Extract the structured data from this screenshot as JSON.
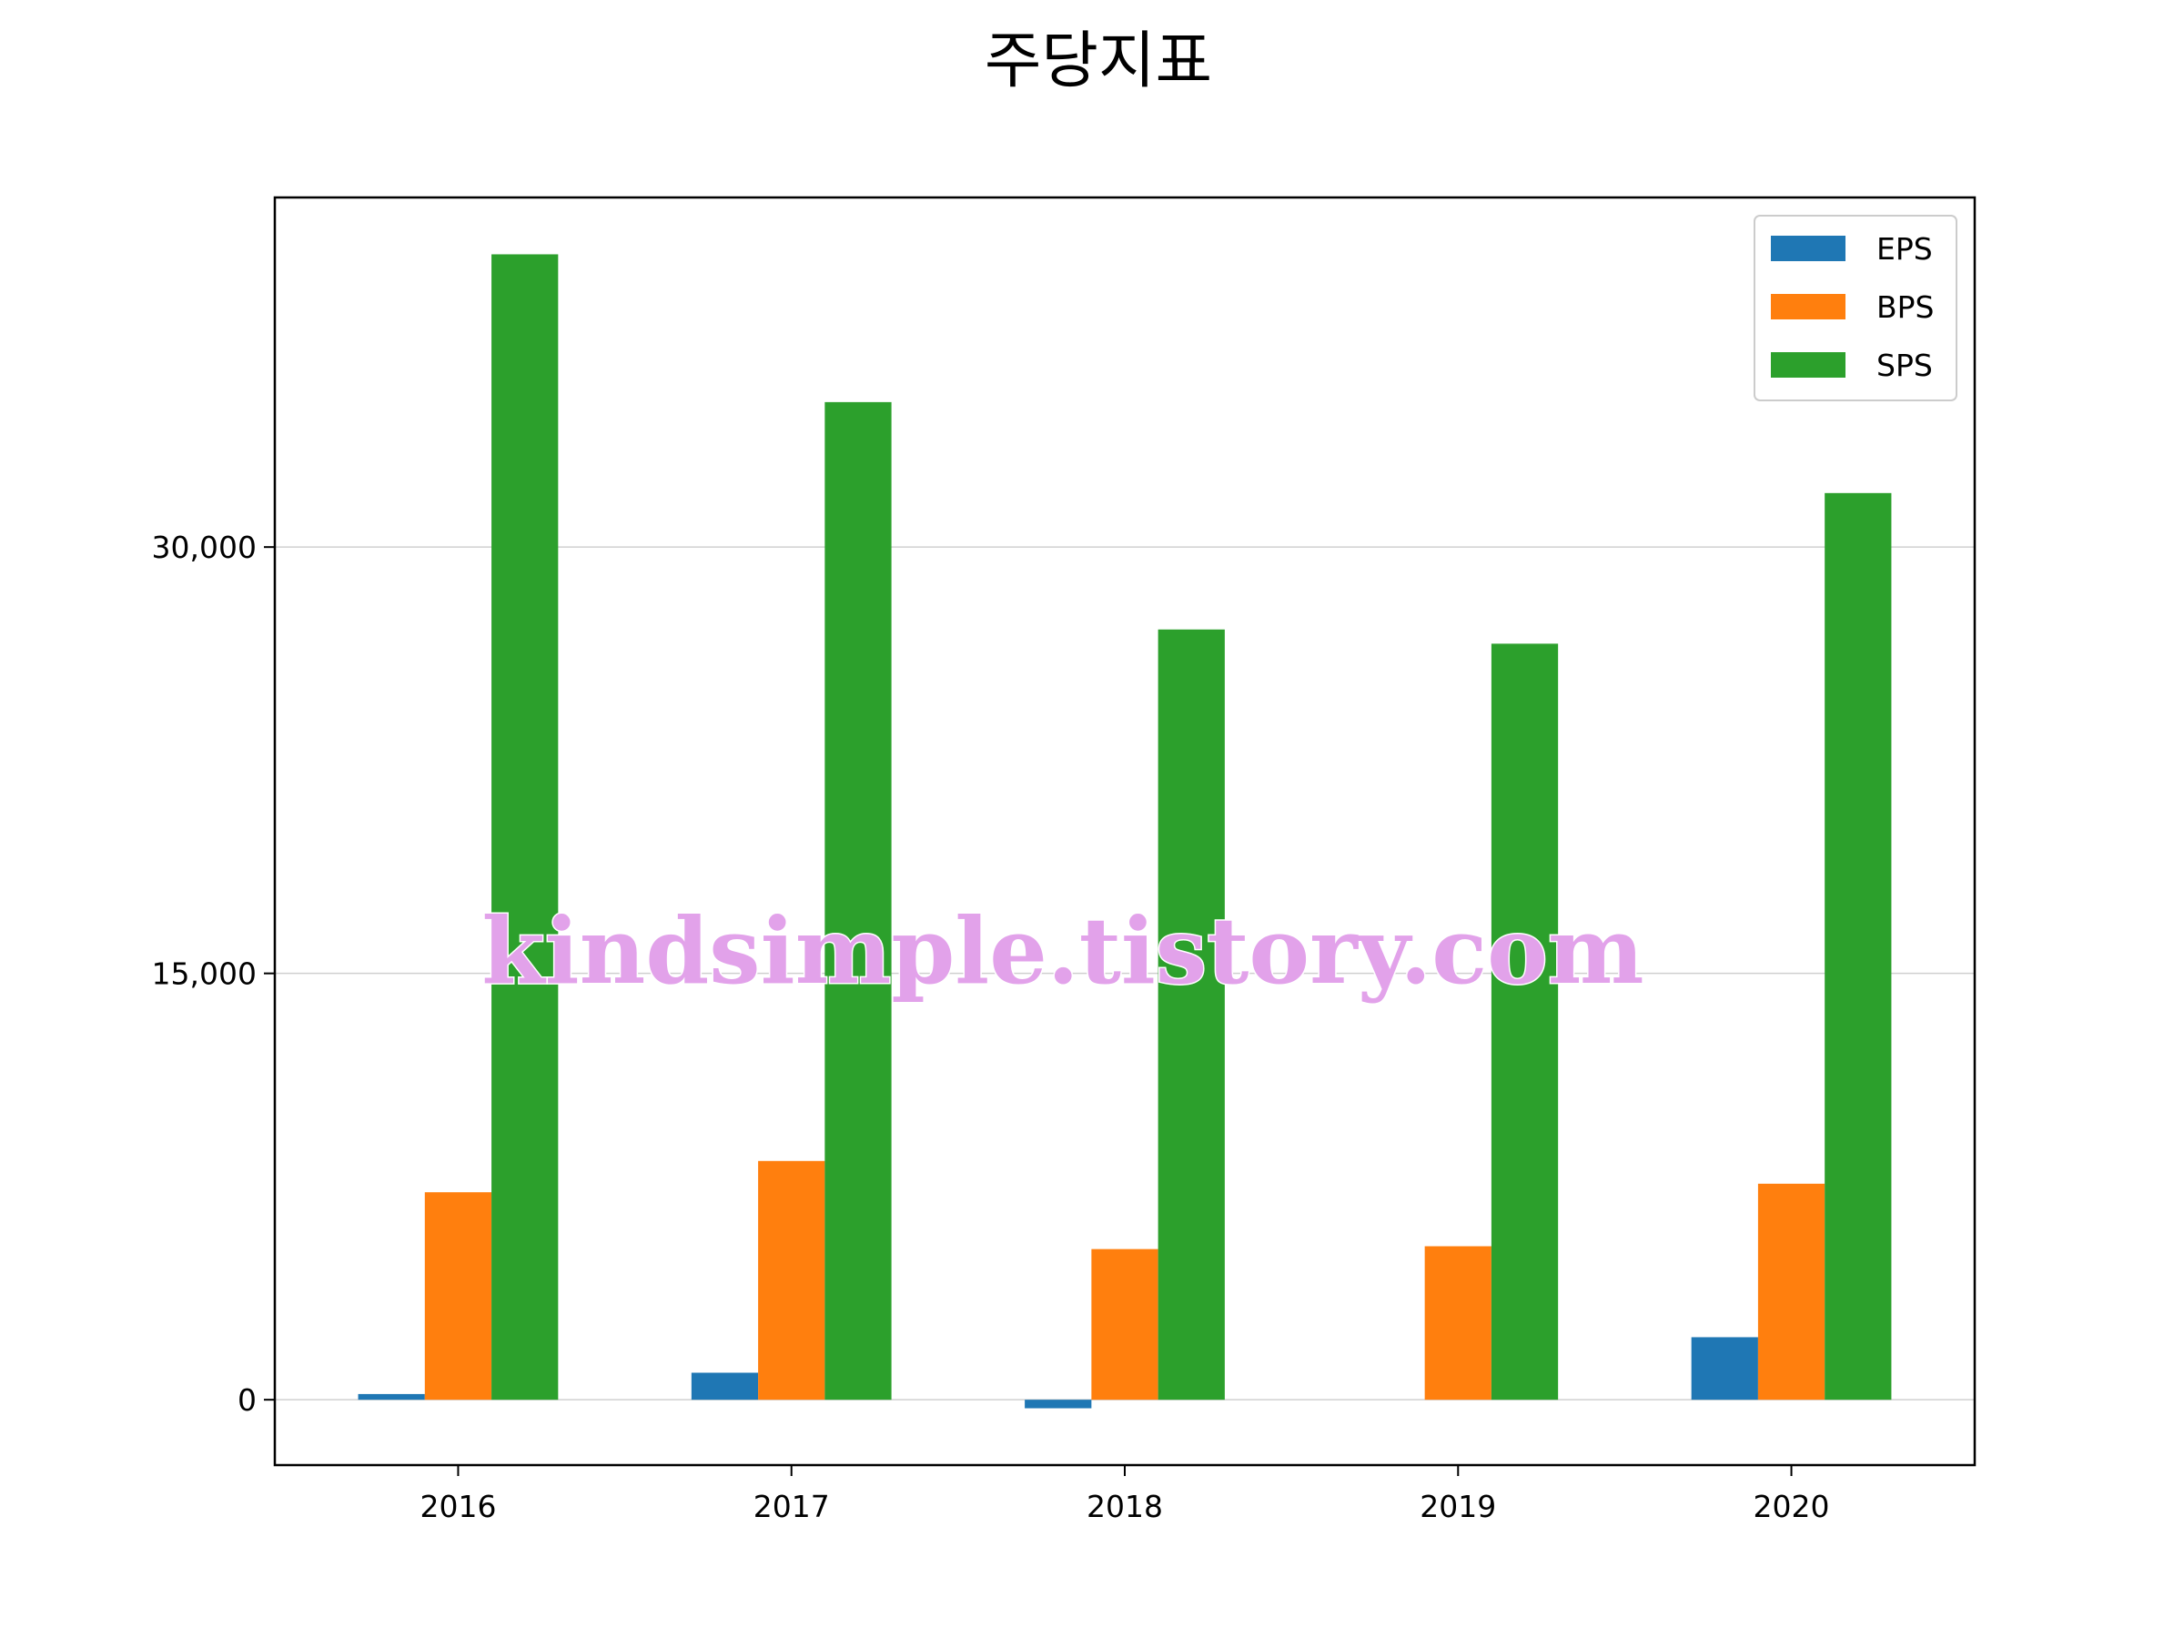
{
  "chart_data": {
    "type": "bar",
    "title": "주당지표",
    "categories": [
      "2016",
      "2017",
      "2018",
      "2019",
      "2020"
    ],
    "series": [
      {
        "name": "EPS",
        "color": "#1f77b4",
        "values": [
          200,
          950,
          -300,
          0,
          2200
        ]
      },
      {
        "name": "BPS",
        "color": "#ff7f0e",
        "values": [
          7300,
          8400,
          5300,
          5400,
          7600
        ]
      },
      {
        "name": "SPS",
        "color": "#2ca02c",
        "values": [
          40300,
          35100,
          27100,
          26600,
          31900
        ]
      }
    ],
    "y_ticks": [
      0,
      15000,
      30000
    ],
    "y_tick_labels": [
      "0",
      "15,000",
      "30,000"
    ],
    "ylim": [
      -2300,
      42300
    ],
    "xlabel": "",
    "ylabel": "",
    "grid": "horizontal",
    "legend_position": "top-right"
  },
  "watermark": "kindsimple.tistory.com"
}
